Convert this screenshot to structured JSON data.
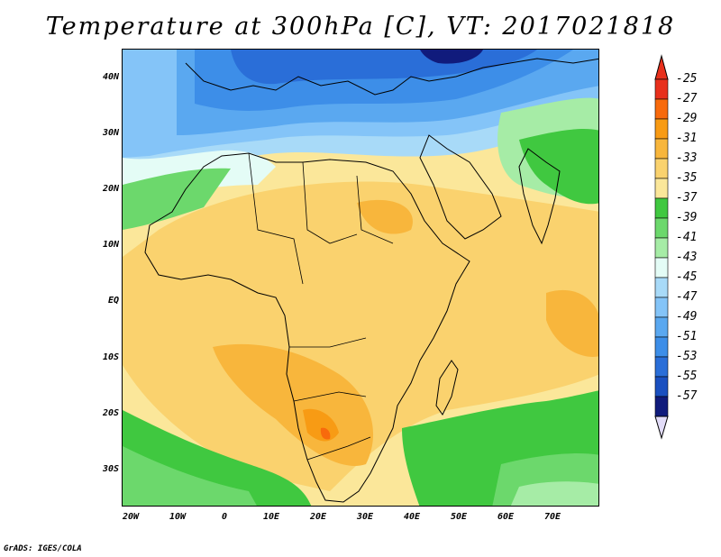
{
  "title": "Temperature at 300hPa [C], VT: 2017021818",
  "footer": "GrADS: IGES/COLA",
  "lat_ticks": [
    "40N",
    "30N",
    "20N",
    "10N",
    "EQ",
    "10S",
    "20S",
    "30S"
  ],
  "lon_ticks": [
    "20W",
    "10W",
    "0",
    "10E",
    "20E",
    "30E",
    "40E",
    "50E",
    "60E",
    "70E"
  ],
  "colorbar": {
    "labels": [
      "-25",
      "-27",
      "-29",
      "-31",
      "-33",
      "-35",
      "-37",
      "-39",
      "-41",
      "-43",
      "-45",
      "-47",
      "-49",
      "-51",
      "-53",
      "-55",
      "-57"
    ],
    "colors": [
      "#e8301c",
      "#f86a0c",
      "#f89b14",
      "#f8b63c",
      "#fad26e",
      "#fbe79a",
      "#40c840",
      "#6cd86c",
      "#a6eca6",
      "#e4fcf6",
      "#a8daf8",
      "#84c4f8",
      "#5aa8f0",
      "#3d8ee8",
      "#2a6ed8",
      "#1a50c0",
      "#101b7c"
    ],
    "over_color": "#e8301c",
    "under_color": "#e2dcf8"
  }
}
